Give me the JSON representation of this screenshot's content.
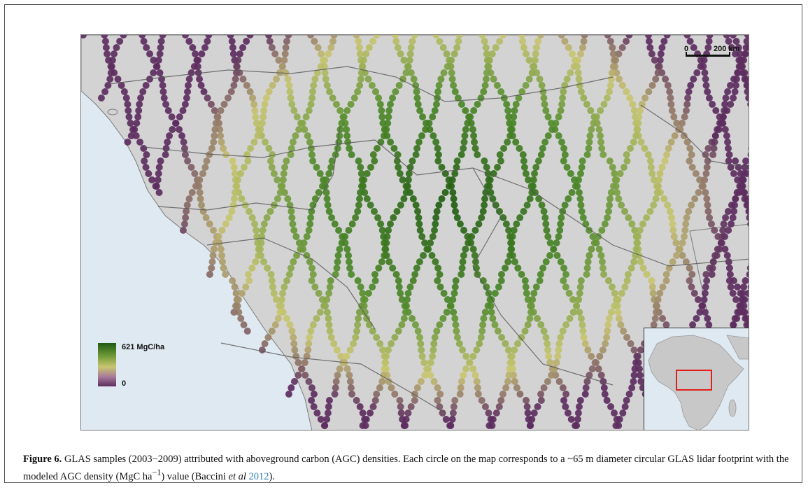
{
  "map": {
    "scalebar": {
      "zero_label": "0",
      "distance_label": "200 km"
    },
    "legend": {
      "max_label": "621 MgC/ha",
      "min_label": "0"
    },
    "colors": {
      "ocean": "#dfe9f2",
      "land": "#d3d3d3",
      "high_agc": "#1f5b12",
      "mid_agc": "#c9c670",
      "low_agc": "#5d2e60",
      "inset_highlight": "#e0201a"
    }
  },
  "caption": {
    "figure_label": "Figure 6.",
    "text_1": " GLAS samples (2003−2009) attributed with aboveground carbon (AGC) densities. Each circle on the map corresponds to a ~65 m diameter circular GLAS lidar footprint with the modeled AGC density (MgC ha",
    "superscript": "−1",
    "text_2": ") value (Baccini ",
    "italic": "et al",
    "year_link": "2012",
    "text_3": ")."
  }
}
